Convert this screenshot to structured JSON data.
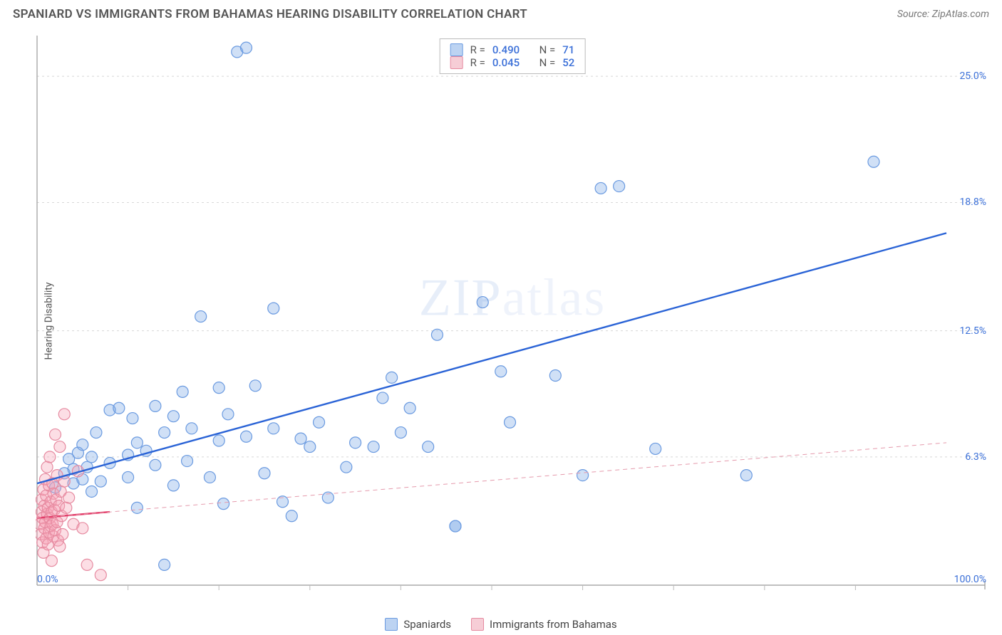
{
  "header": {
    "title": "SPANIARD VS IMMIGRANTS FROM BAHAMAS HEARING DISABILITY CORRELATION CHART",
    "source_prefix": "Source: ",
    "source_name": "ZipAtlas.com"
  },
  "watermark": {
    "bold": "ZIP",
    "thin": "atlas"
  },
  "ylabel": "Hearing Disability",
  "chart": {
    "type": "scatter",
    "background_color": "#ffffff",
    "grid_color": "#d8d8d8",
    "axis_color": "#999999",
    "tick_color": "#bbbbbb",
    "xlim": [
      0,
      100
    ],
    "ylim": [
      0,
      27
    ],
    "x_ticks_minor_step": 10,
    "y_grid": [
      6.3,
      12.5,
      18.8,
      25.0
    ],
    "y_grid_labels": [
      "6.3%",
      "12.5%",
      "18.8%",
      "25.0%"
    ],
    "x_axis_labels": {
      "left": "0.0%",
      "right": "100.0%"
    },
    "marker_radius": 8,
    "marker_stroke_width": 1.2,
    "trend_line_width_solid": 2.4,
    "trend_line_width_dashed": 1,
    "series": [
      {
        "id": "spaniards",
        "label": "Spaniards",
        "fill": "rgba(120,165,230,0.35)",
        "stroke": "#6a9ae0",
        "swatch_fill": "#bcd3f2",
        "swatch_border": "#6a9ae0",
        "r_label": "R =",
        "r_value": "0.490",
        "n_label": "N =",
        "n_value": "71",
        "trend": {
          "y_at_x0": 5.0,
          "y_at_x100": 17.3,
          "dash": null,
          "color": "#2a63d6",
          "x_end_frac": 1.0
        },
        "points": [
          [
            2,
            4.8
          ],
          [
            3,
            5.5
          ],
          [
            3.5,
            6.2
          ],
          [
            4,
            5.0
          ],
          [
            4,
            5.7
          ],
          [
            4.5,
            6.5
          ],
          [
            5,
            5.2
          ],
          [
            5,
            6.9
          ],
          [
            5.5,
            5.8
          ],
          [
            6,
            4.6
          ],
          [
            6,
            6.3
          ],
          [
            6.5,
            7.5
          ],
          [
            7,
            5.1
          ],
          [
            8,
            6.0
          ],
          [
            8,
            8.6
          ],
          [
            9,
            8.7
          ],
          [
            10,
            6.4
          ],
          [
            10,
            5.3
          ],
          [
            10.5,
            8.2
          ],
          [
            11,
            3.8
          ],
          [
            11,
            7.0
          ],
          [
            12,
            6.6
          ],
          [
            13,
            5.9
          ],
          [
            13,
            8.8
          ],
          [
            14,
            7.5
          ],
          [
            14,
            1.0
          ],
          [
            15,
            4.9
          ],
          [
            15,
            8.3
          ],
          [
            16,
            9.5
          ],
          [
            16.5,
            6.1
          ],
          [
            17,
            7.7
          ],
          [
            18,
            13.2
          ],
          [
            19,
            5.3
          ],
          [
            20,
            9.7
          ],
          [
            20,
            7.1
          ],
          [
            20.5,
            4.0
          ],
          [
            21,
            8.4
          ],
          [
            22,
            26.2
          ],
          [
            23,
            26.4
          ],
          [
            23,
            7.3
          ],
          [
            24,
            9.8
          ],
          [
            25,
            5.5
          ],
          [
            26,
            7.7
          ],
          [
            26,
            13.6
          ],
          [
            27,
            4.1
          ],
          [
            28,
            3.4
          ],
          [
            29,
            7.2
          ],
          [
            30,
            6.8
          ],
          [
            31,
            8.0
          ],
          [
            32,
            4.3
          ],
          [
            34,
            5.8
          ],
          [
            35,
            7.0
          ],
          [
            37,
            6.8
          ],
          [
            38,
            9.2
          ],
          [
            39,
            10.2
          ],
          [
            40,
            7.5
          ],
          [
            41,
            8.7
          ],
          [
            43,
            6.8
          ],
          [
            44,
            12.3
          ],
          [
            46,
            2.9
          ],
          [
            46,
            2.9
          ],
          [
            49,
            13.9
          ],
          [
            51,
            10.5
          ],
          [
            52,
            8.0
          ],
          [
            57,
            10.3
          ],
          [
            60,
            5.4
          ],
          [
            62,
            19.5
          ],
          [
            64,
            19.6
          ],
          [
            68,
            6.7
          ],
          [
            78,
            5.4
          ],
          [
            92,
            20.8
          ]
        ]
      },
      {
        "id": "bahamas",
        "label": "Immigrants from Bahamas",
        "fill": "rgba(245,160,180,0.35)",
        "stroke": "#e68aa0",
        "swatch_fill": "#f6cdd6",
        "swatch_border": "#e68aa0",
        "r_label": "R =",
        "r_value": "0.045",
        "n_label": "N =",
        "n_value": "52",
        "trend": {
          "y_at_x0": 3.3,
          "y_at_x100": 7.0,
          "dash": "6,5",
          "color": "#e59aac",
          "x_end_frac": 1.0
        },
        "trend_solid": {
          "y_at_x0": 3.3,
          "y_at_x8": 3.6,
          "color": "#e33d6a",
          "x_end_frac": 0.08
        },
        "points": [
          [
            0.3,
            3.0
          ],
          [
            0.4,
            2.5
          ],
          [
            0.5,
            3.6
          ],
          [
            0.5,
            4.2
          ],
          [
            0.6,
            2.1
          ],
          [
            0.6,
            3.3
          ],
          [
            0.7,
            4.7
          ],
          [
            0.7,
            1.6
          ],
          [
            0.8,
            3.9
          ],
          [
            0.8,
            2.8
          ],
          [
            0.9,
            5.2
          ],
          [
            0.9,
            3.1
          ],
          [
            1.0,
            2.3
          ],
          [
            1.0,
            4.4
          ],
          [
            1.1,
            3.5
          ],
          [
            1.1,
            5.8
          ],
          [
            1.2,
            2.0
          ],
          [
            1.2,
            3.8
          ],
          [
            1.3,
            4.9
          ],
          [
            1.3,
            2.6
          ],
          [
            1.4,
            3.3
          ],
          [
            1.4,
            6.3
          ],
          [
            1.5,
            2.9
          ],
          [
            1.5,
            4.1
          ],
          [
            1.6,
            3.6
          ],
          [
            1.6,
            1.2
          ],
          [
            1.7,
            5.0
          ],
          [
            1.7,
            3.0
          ],
          [
            1.8,
            4.5
          ],
          [
            1.8,
            2.4
          ],
          [
            1.9,
            3.7
          ],
          [
            2.0,
            7.4
          ],
          [
            2.0,
            2.7
          ],
          [
            2.1,
            4.2
          ],
          [
            2.2,
            3.1
          ],
          [
            2.2,
            5.4
          ],
          [
            2.3,
            2.2
          ],
          [
            2.4,
            3.9
          ],
          [
            2.5,
            6.8
          ],
          [
            2.5,
            1.9
          ],
          [
            2.6,
            4.6
          ],
          [
            2.7,
            3.4
          ],
          [
            2.8,
            2.5
          ],
          [
            3.0,
            5.1
          ],
          [
            3.0,
            8.4
          ],
          [
            3.2,
            3.8
          ],
          [
            3.5,
            4.3
          ],
          [
            4.0,
            3.0
          ],
          [
            4.5,
            5.6
          ],
          [
            5.0,
            2.8
          ],
          [
            5.5,
            1.0
          ],
          [
            7.0,
            0.5
          ]
        ]
      }
    ]
  }
}
